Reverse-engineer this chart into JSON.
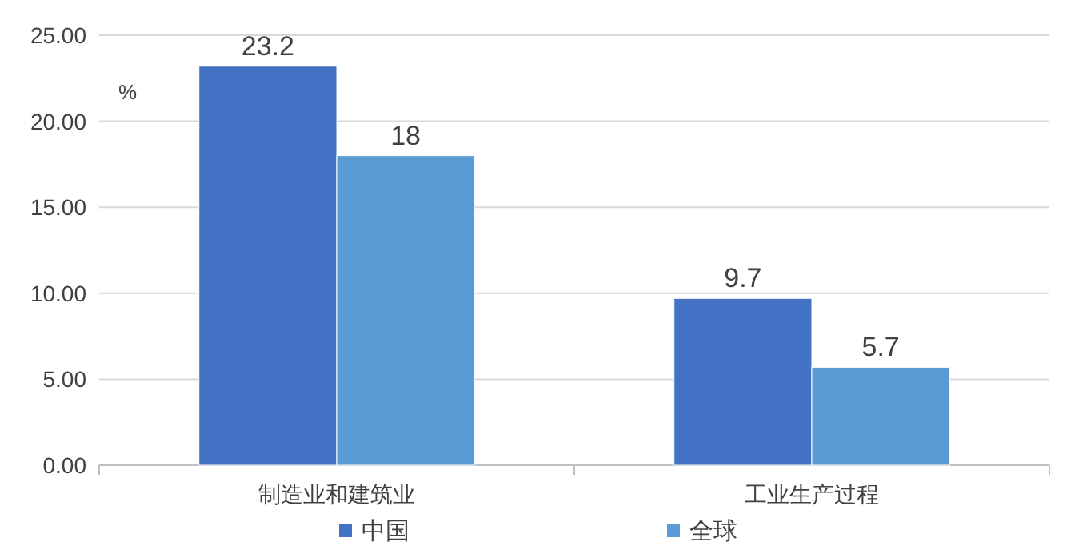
{
  "chart_data": {
    "type": "bar",
    "categories": [
      "制造业和建筑业",
      "工业生产过程"
    ],
    "series": [
      {
        "name": "中国",
        "color": "#4472c4",
        "values": [
          23.2,
          9.7
        ]
      },
      {
        "name": "全球",
        "color": "#5b9bd5",
        "values": [
          18,
          5.7
        ]
      }
    ],
    "ylim": [
      0,
      25
    ],
    "yticks": [
      {
        "value": 0,
        "label": "0.00"
      },
      {
        "value": 5,
        "label": "5.00"
      },
      {
        "value": 10,
        "label": "10.00"
      },
      {
        "value": 15,
        "label": "15.00"
      },
      {
        "value": 20,
        "label": "20.00"
      },
      {
        "value": 25,
        "label": "25.00"
      }
    ],
    "grid": "y",
    "legend": "bottom",
    "data_labels": true,
    "annotations": [
      "%"
    ]
  }
}
